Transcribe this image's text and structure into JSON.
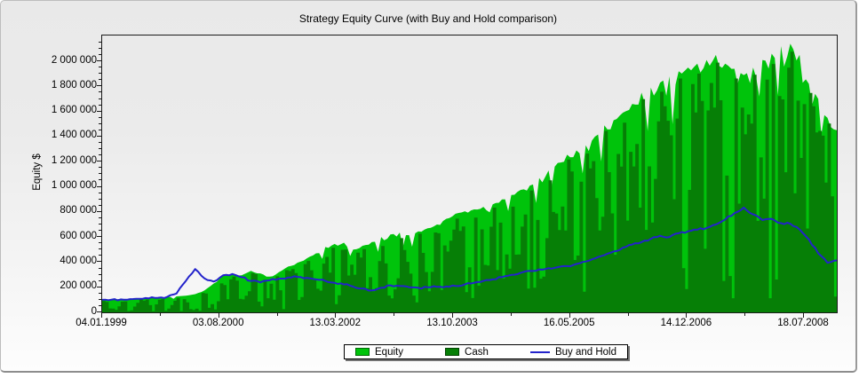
{
  "chart_title": "Strategy Equity Curve (with Buy and Hold comparison)",
  "y_axis": {
    "title": "Equity $",
    "tick_labels": [
      "0",
      "200 000",
      "400 000",
      "600 000",
      "800 000",
      "1 000 000",
      "1 200 000",
      "1 400 000",
      "1 600 000",
      "1 800 000",
      "2 000 000"
    ]
  },
  "x_axis": {
    "tick_labels": [
      "04.01.1999",
      "03.08.2000",
      "13.03.2002",
      "13.10.2003",
      "16.05.2005",
      "14.12.2006",
      "18.07.2008"
    ]
  },
  "legend": {
    "items": [
      {
        "label": "Equity",
        "color": "#00c30b",
        "marker": "square"
      },
      {
        "label": "Cash",
        "color": "#067f06",
        "marker": "square"
      },
      {
        "label": "Buy and Hold",
        "color": "#2323cb",
        "marker": "line"
      }
    ]
  },
  "chart_data": {
    "type": "area",
    "title": "Strategy Equity Curve (with Buy and Hold comparison)",
    "xlabel": "",
    "ylabel": "Equity $",
    "x_start_date": "04.01.1999",
    "x_end_date": "18.07.2008",
    "x_tick_labels": [
      "04.01.1999",
      "03.08.2000",
      "13.03.2002",
      "13.10.2003",
      "16.05.2005",
      "14.12.2006",
      "18.07.2008"
    ],
    "y_tick_values_k": [
      0,
      200,
      400,
      600,
      800,
      1000,
      1200,
      1400,
      1600,
      1800,
      2000
    ],
    "ylim_k": [
      0,
      2205
    ],
    "units": "thousand $",
    "grid": false,
    "legend_position": "bottom-center",
    "texture_seed": 987654321,
    "series": [
      {
        "name": "Equity",
        "style": "area",
        "color": "#00c30b",
        "values_k": [
          100,
          102,
          105,
          108,
          110,
          114,
          118,
          122,
          127,
          133,
          145,
          175,
          230,
          290,
          310,
          295,
          330,
          310,
          285,
          320,
          365,
          395,
          430,
          470,
          520,
          545,
          555,
          500,
          530,
          560,
          600,
          620,
          635,
          615,
          645,
          670,
          700,
          745,
          785,
          805,
          820,
          840,
          860,
          900,
          935,
          975,
          1010,
          1070,
          1130,
          1190,
          1255,
          1290,
          1330,
          1400,
          1490,
          1530,
          1590,
          1660,
          1750,
          1790,
          1830,
          1880,
          1920,
          1950,
          1980,
          2010,
          2050,
          1980,
          1940,
          1890,
          1950,
          2010,
          2060,
          2120,
          2140,
          2050,
          1820,
          1700,
          1550,
          1450
        ]
      },
      {
        "name": "Cash",
        "style": "area",
        "color": "#067f06",
        "values_k": [
          90,
          30,
          85,
          16,
          105,
          57,
          100,
          30,
          115,
          80,
          29,
          150,
          23,
          218,
          285,
          103,
          314,
          47,
          228,
          176,
          329,
          99,
          409,
          188,
          442,
          65,
          500,
          300,
          504,
          168,
          528,
          112,
          591,
          308,
          626,
          168,
          630,
          484,
          746,
          161,
          754,
          378,
          834,
          270,
          842,
          683,
          970,
          268,
          1051,
          655,
          1217,
          452,
          1264,
          910,
          1445,
          459,
          1511,
          1162,
          1698,
          716,
          1757,
          1410,
          1862,
          975,
          1901,
          1608,
          1989,
          1089,
          1862,
          1418,
          1892,
          905,
          1978,
          1696,
          2076,
          1230,
          1747,
          1445,
          1504,
          1305
        ]
      },
      {
        "name": "Buy and Hold",
        "style": "line",
        "color": "#2323cb",
        "values_k": [
          100,
          101,
          103,
          105,
          108,
          111,
          116,
          124,
          150,
          250,
          345,
          270,
          245,
          295,
          305,
          280,
          250,
          238,
          255,
          268,
          278,
          282,
          275,
          262,
          250,
          235,
          222,
          205,
          190,
          175,
          196,
          215,
          210,
          200,
          195,
          199,
          203,
          206,
          210,
          222,
          235,
          250,
          262,
          280,
          298,
          315,
          330,
          342,
          352,
          360,
          368,
          385,
          405,
          430,
          455,
          485,
          515,
          540,
          560,
          585,
          610,
          600,
          630,
          645,
          658,
          672,
          700,
          740,
          790,
          835,
          780,
          735,
          745,
          710,
          705,
          660,
          580,
          470,
          395,
          415
        ]
      }
    ]
  }
}
